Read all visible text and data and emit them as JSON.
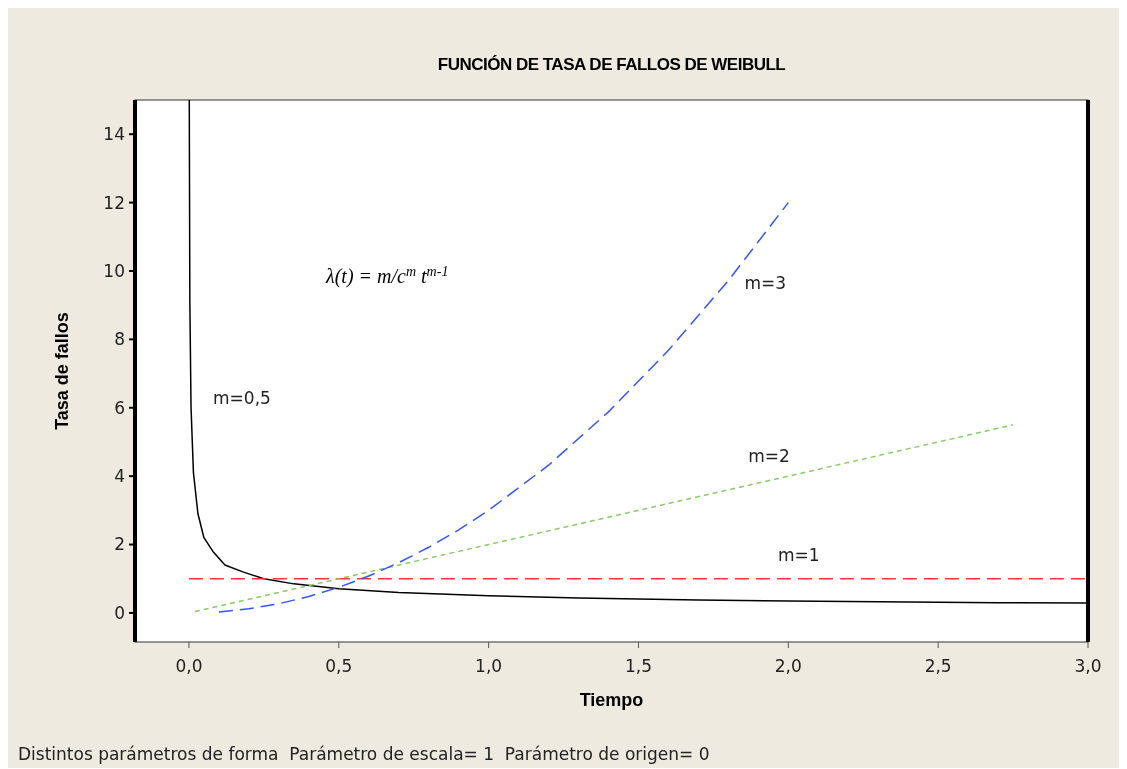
{
  "chart_data": {
    "type": "line",
    "title": "FUNCIÓN DE TASA DE FALLOS DE WEIBULL",
    "xlabel": "Tiempo",
    "ylabel": "Tasa de fallos",
    "xlim": [
      -0.18,
      3.0
    ],
    "ylim": [
      -0.85,
      15
    ],
    "xticks": [
      {
        "value": 0,
        "label": "0,0"
      },
      {
        "value": 0.5,
        "label": "0,5"
      },
      {
        "value": 1,
        "label": "1,0"
      },
      {
        "value": 1.5,
        "label": "1,5"
      },
      {
        "value": 2,
        "label": "2,0"
      },
      {
        "value": 2.5,
        "label": "2,5"
      },
      {
        "value": 3,
        "label": "3,0"
      }
    ],
    "yticks": [
      0,
      2,
      4,
      6,
      8,
      10,
      12,
      14
    ],
    "grid": false,
    "marker": "none",
    "series": [
      {
        "name": "m=0,5",
        "color": "#000000",
        "line_style": "solid",
        "x": [
          0.0011,
          0.003,
          0.007,
          0.015,
          0.03,
          0.05,
          0.08,
          0.12,
          0.18,
          0.25,
          0.35,
          0.5,
          0.7,
          1.0,
          1.3,
          1.7,
          2.0,
          2.3,
          2.7,
          3.0
        ],
        "values": [
          15,
          9.1,
          6.0,
          4.1,
          2.9,
          2.2,
          1.8,
          1.4,
          1.2,
          1.0,
          0.85,
          0.71,
          0.6,
          0.5,
          0.44,
          0.38,
          0.35,
          0.33,
          0.3,
          0.29
        ]
      },
      {
        "name": "m=1",
        "color": "#ff3333",
        "line_style": "dashed",
        "x": [
          0,
          3
        ],
        "values": [
          1,
          1
        ]
      },
      {
        "name": "m=2",
        "color": "#88cc66",
        "line_style": "dotted",
        "x": [
          0.02,
          1.0,
          2.0,
          2.75
        ],
        "values": [
          0.04,
          2.0,
          4.0,
          5.5
        ]
      },
      {
        "name": "m=3",
        "color": "#3355ff",
        "line_style": "dashed",
        "x": [
          0.1,
          0.2,
          0.3,
          0.4,
          0.5,
          0.6,
          0.7,
          0.8,
          0.9,
          1.0,
          1.2,
          1.4,
          1.6,
          1.8,
          2.0
        ],
        "values": [
          0.03,
          0.12,
          0.27,
          0.48,
          0.75,
          1.08,
          1.47,
          1.92,
          2.43,
          3.0,
          4.32,
          5.88,
          7.68,
          9.72,
          12
        ]
      }
    ],
    "annotations": [
      "λ(t) = m/c$^{m}$ t$^{m-1}$",
      "Distintos parámetros de forma  Parámetro de escala= 1  Parámetro de origen= 0"
    ]
  }
}
